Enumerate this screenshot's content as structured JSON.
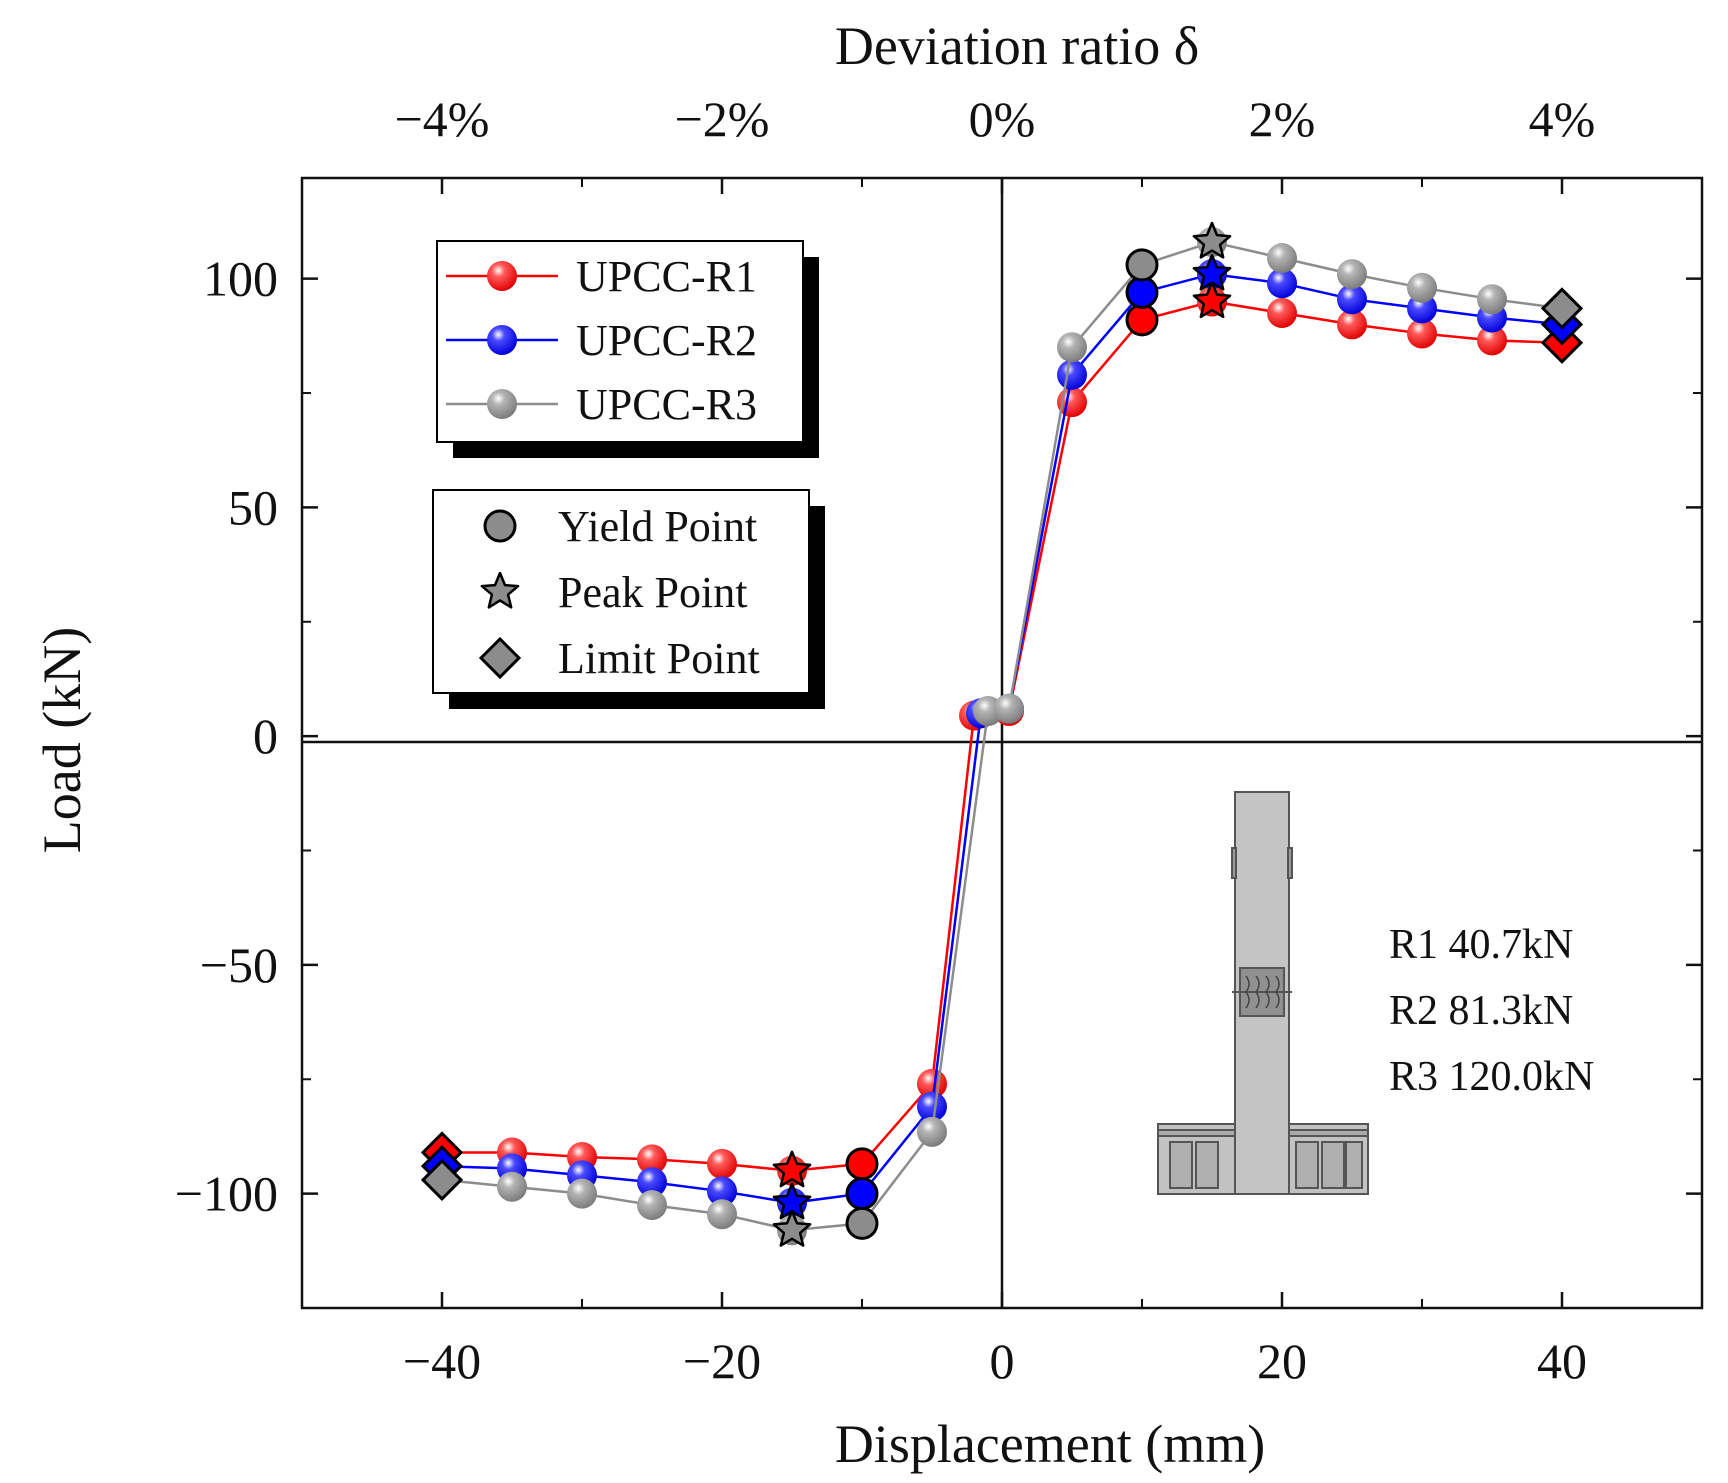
{
  "chart_data": {
    "type": "line",
    "title": "",
    "xlabel": "Displacement (mm)",
    "ylabel": "Load (kN)",
    "top_xlabel": "Deviation ratio δ",
    "xlim": [
      -50,
      50
    ],
    "ylim": [
      -125,
      122
    ],
    "x_ticks": [
      -40,
      -20,
      0,
      20,
      40
    ],
    "x_tick_labels": [
      "−40",
      "−20",
      "0",
      "20",
      "40"
    ],
    "y_ticks": [
      -100,
      -50,
      0,
      50,
      100
    ],
    "y_tick_labels": [
      "−100",
      "−50",
      "0",
      "50",
      "100"
    ],
    "top_ticks": [
      -40,
      -20,
      0,
      20,
      40
    ],
    "top_tick_labels": [
      "−4%",
      "−2%",
      "0%",
      "2%",
      "4%"
    ],
    "grid": false,
    "legend_position": "top-left",
    "series": [
      {
        "name": "UPCC-R1",
        "color": "#ff0000",
        "points": [
          {
            "x": -40,
            "y": -91
          },
          {
            "x": -35,
            "y": -91
          },
          {
            "x": -30,
            "y": -92
          },
          {
            "x": -25,
            "y": -92.5
          },
          {
            "x": -20,
            "y": -93.5
          },
          {
            "x": -15,
            "y": -95
          },
          {
            "x": -10,
            "y": -93.5
          },
          {
            "x": -5,
            "y": -76
          },
          {
            "x": -2,
            "y": 4.5
          },
          {
            "x": 0.5,
            "y": 5.5
          },
          {
            "x": 5,
            "y": 73
          },
          {
            "x": 10,
            "y": 91
          },
          {
            "x": 15,
            "y": 95
          },
          {
            "x": 20,
            "y": 92.5
          },
          {
            "x": 25,
            "y": 90
          },
          {
            "x": 30,
            "y": 88
          },
          {
            "x": 35,
            "y": 86.5
          },
          {
            "x": 40,
            "y": 86
          }
        ],
        "yield": [
          {
            "x": 10,
            "y": 91
          },
          {
            "x": -10,
            "y": -93.5
          }
        ],
        "peak": [
          {
            "x": 15,
            "y": 95
          },
          {
            "x": -15,
            "y": -95
          }
        ],
        "limit": [
          {
            "x": 40,
            "y": 86
          },
          {
            "x": -40,
            "y": -91
          }
        ]
      },
      {
        "name": "UPCC-R2",
        "color": "#0000ff",
        "points": [
          {
            "x": -40,
            "y": -94
          },
          {
            "x": -35,
            "y": -94.5
          },
          {
            "x": -30,
            "y": -96
          },
          {
            "x": -25,
            "y": -97.5
          },
          {
            "x": -20,
            "y": -99.5
          },
          {
            "x": -15,
            "y": -102
          },
          {
            "x": -10,
            "y": -100
          },
          {
            "x": -5,
            "y": -81
          },
          {
            "x": -1.5,
            "y": 5
          },
          {
            "x": 0.5,
            "y": 6
          },
          {
            "x": 5,
            "y": 79
          },
          {
            "x": 10,
            "y": 97
          },
          {
            "x": 15,
            "y": 101
          },
          {
            "x": 20,
            "y": 99
          },
          {
            "x": 25,
            "y": 95.5
          },
          {
            "x": 30,
            "y": 93.5
          },
          {
            "x": 35,
            "y": 91.5
          },
          {
            "x": 40,
            "y": 90
          }
        ],
        "yield": [
          {
            "x": 10,
            "y": 97
          },
          {
            "x": -10,
            "y": -100
          }
        ],
        "peak": [
          {
            "x": 15,
            "y": 101
          },
          {
            "x": -15,
            "y": -102
          }
        ],
        "limit": [
          {
            "x": 40,
            "y": 90
          },
          {
            "x": -40,
            "y": -94
          }
        ]
      },
      {
        "name": "UPCC-R3",
        "color": "#8c8c8c",
        "points": [
          {
            "x": -40,
            "y": -97
          },
          {
            "x": -35,
            "y": -98.5
          },
          {
            "x": -30,
            "y": -100
          },
          {
            "x": -25,
            "y": -102.5
          },
          {
            "x": -20,
            "y": -104.5
          },
          {
            "x": -15,
            "y": -108
          },
          {
            "x": -10,
            "y": -106.5
          },
          {
            "x": -5,
            "y": -86.5
          },
          {
            "x": -1,
            "y": 5.5
          },
          {
            "x": 0.5,
            "y": 6
          },
          {
            "x": 5,
            "y": 85
          },
          {
            "x": 10,
            "y": 103
          },
          {
            "x": 15,
            "y": 108
          },
          {
            "x": 20,
            "y": 104.5
          },
          {
            "x": 25,
            "y": 101
          },
          {
            "x": 30,
            "y": 98
          },
          {
            "x": 35,
            "y": 95.5
          },
          {
            "x": 40,
            "y": 93.5
          }
        ],
        "yield": [
          {
            "x": 10,
            "y": 103
          },
          {
            "x": -10,
            "y": -106.5
          }
        ],
        "peak": [
          {
            "x": 15,
            "y": 108
          },
          {
            "x": -15,
            "y": -108
          }
        ],
        "limit": [
          {
            "x": 40,
            "y": 93.5
          },
          {
            "x": -40,
            "y": -97
          }
        ]
      }
    ],
    "marker_legend": [
      {
        "label": "Yield Point",
        "symbol": "circle"
      },
      {
        "label": "Peak Point",
        "symbol": "star"
      },
      {
        "label": "Limit Point",
        "symbol": "diamond"
      }
    ],
    "annotations": [
      "R1 40.7kN",
      "R2 81.3kN",
      "R3 120.0kN"
    ],
    "marker_fill": "#8c8c8c"
  }
}
